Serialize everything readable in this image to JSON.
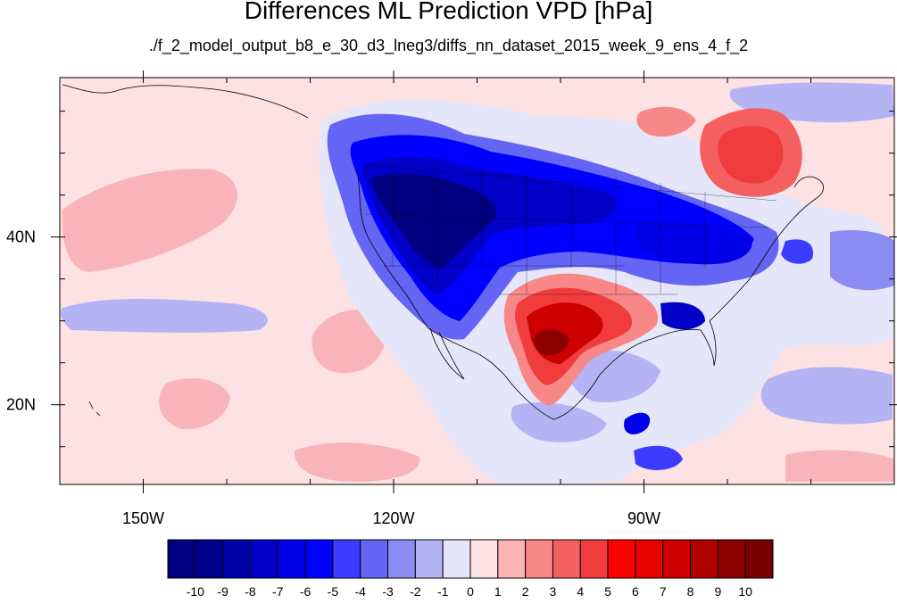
{
  "title": "Differences ML Prediction VPD [hPa]",
  "subtitle": "./f_2_model_output_b8_e_30_d3_lneg3/diffs_nn_dataset_2015_week_9_ens_4_f_2",
  "map": {
    "lon_range": [
      -160,
      -60
    ],
    "lat_range": [
      10.5,
      59
    ],
    "lon_ticks": [
      {
        "value": -150,
        "label": "150W"
      },
      {
        "value": -120,
        "label": "120W"
      },
      {
        "value": -90,
        "label": "90W"
      }
    ],
    "lat_ticks": [
      {
        "value": 40,
        "label": "40N"
      },
      {
        "value": 20,
        "label": "20N"
      }
    ],
    "background_color": "#fde2e4"
  },
  "colorbar": {
    "labels": [
      "-10",
      "-9",
      "-8",
      "-7",
      "-6",
      "-5",
      "-4",
      "-3",
      "-2",
      "-1",
      "0",
      "1",
      "2",
      "3",
      "4",
      "5",
      "6",
      "7",
      "8",
      "9",
      "10"
    ],
    "colors": [
      "#000080",
      "#00008f",
      "#0000a8",
      "#0000c8",
      "#0000e6",
      "#0000ff",
      "#3c3cff",
      "#6464f5",
      "#8c8cf5",
      "#b4b4f5",
      "#e6e6fa",
      "#fde2e4",
      "#fcb4b4",
      "#f88888",
      "#f46060",
      "#f03c3c",
      "#ff0000",
      "#e60000",
      "#cc0000",
      "#b00000",
      "#8c0000",
      "#780000"
    ]
  }
}
